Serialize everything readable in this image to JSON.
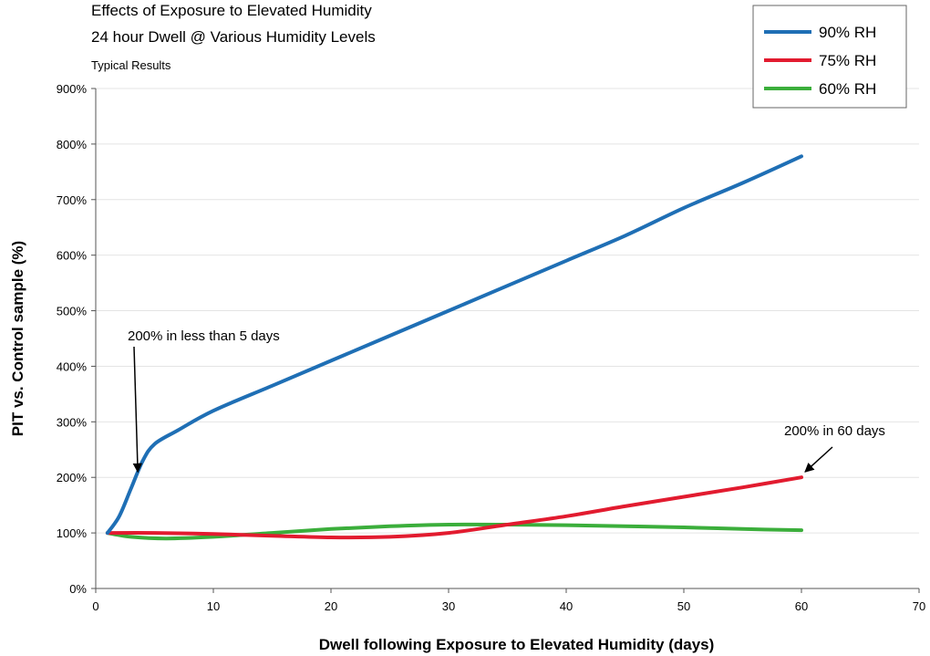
{
  "chart_data": {
    "type": "line",
    "title": "Effects of Exposure to Elevated Humidity",
    "subtitle": "24 hour Dwell @ Various Humidity Levels",
    "note": "Typical Results",
    "xlabel": "Dwell following Exposure to Elevated Humidity (days)",
    "ylabel": "PIT vs. Control sample (%)",
    "xlim": [
      0,
      70
    ],
    "ylim": [
      0,
      900
    ],
    "x_ticks": [
      0,
      10,
      20,
      30,
      40,
      50,
      60,
      70
    ],
    "y_ticks": [
      0,
      100,
      200,
      300,
      400,
      500,
      600,
      700,
      800,
      900
    ],
    "y_tick_labels": [
      "0%",
      "100%",
      "200%",
      "300%",
      "400%",
      "500%",
      "600%",
      "700%",
      "800%",
      "900%"
    ],
    "grid": "horizontal",
    "legend_position": "top-right",
    "series": [
      {
        "name": "90% RH",
        "color": "#1f6fb5",
        "points": [
          [
            1,
            100
          ],
          [
            2,
            130
          ],
          [
            3,
            180
          ],
          [
            4,
            230
          ],
          [
            5,
            260
          ],
          [
            7,
            285
          ],
          [
            10,
            320
          ],
          [
            15,
            365
          ],
          [
            20,
            410
          ],
          [
            25,
            455
          ],
          [
            30,
            500
          ],
          [
            35,
            545
          ],
          [
            40,
            590
          ],
          [
            45,
            635
          ],
          [
            50,
            685
          ],
          [
            55,
            730
          ],
          [
            60,
            778
          ]
        ]
      },
      {
        "name": "75% RH",
        "color": "#e21b2f",
        "points": [
          [
            1,
            100
          ],
          [
            5,
            100
          ],
          [
            10,
            98
          ],
          [
            15,
            95
          ],
          [
            20,
            92
          ],
          [
            25,
            93
          ],
          [
            30,
            100
          ],
          [
            35,
            115
          ],
          [
            40,
            130
          ],
          [
            45,
            148
          ],
          [
            50,
            165
          ],
          [
            55,
            182
          ],
          [
            60,
            200
          ]
        ]
      },
      {
        "name": "60% RH",
        "color": "#3bae3b",
        "points": [
          [
            1,
            100
          ],
          [
            3,
            93
          ],
          [
            6,
            90
          ],
          [
            10,
            93
          ],
          [
            15,
            100
          ],
          [
            20,
            107
          ],
          [
            25,
            112
          ],
          [
            30,
            115
          ],
          [
            35,
            115
          ],
          [
            40,
            114
          ],
          [
            45,
            112
          ],
          [
            50,
            110
          ],
          [
            55,
            107
          ],
          [
            60,
            105
          ]
        ]
      }
    ],
    "annotations": [
      {
        "text": "200% in less than 5 days",
        "x": 3.5,
        "y": 200
      },
      {
        "text": "200% in 60 days",
        "x": 60,
        "y": 200
      }
    ]
  }
}
